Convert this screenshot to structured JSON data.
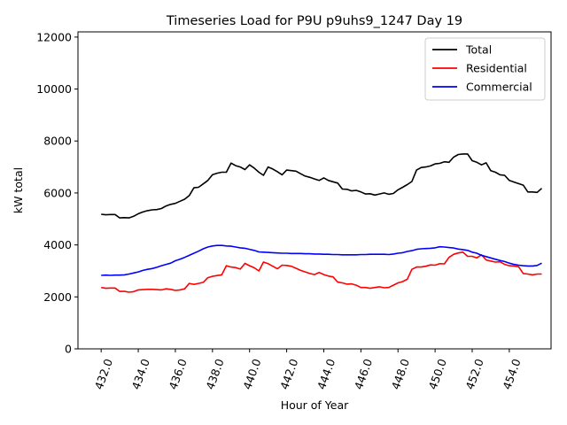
{
  "chart_data": {
    "type": "line",
    "title": "Timeseries Load for P9U p9uhs9_1247  Day 19",
    "xlabel": "Hour of Year",
    "ylabel": "kW total",
    "xlim": [
      430.75,
      456.25
    ],
    "ylim": [
      0,
      12200
    ],
    "xticks": [
      432,
      434,
      436,
      438,
      440,
      442,
      444,
      446,
      448,
      450,
      452,
      454
    ],
    "xtick_labels": [
      "432.0",
      "434.0",
      "436.0",
      "438.0",
      "440.0",
      "442.0",
      "444.0",
      "446.0",
      "448.0",
      "450.0",
      "452.0",
      "454.0"
    ],
    "yticks": [
      0,
      2000,
      4000,
      6000,
      8000,
      10000,
      12000
    ],
    "ytick_labels": [
      "0",
      "2000",
      "4000",
      "6000",
      "8000",
      "10000",
      "12000"
    ],
    "legend_position": "top-right",
    "x": [
      432.0,
      432.25,
      432.5,
      432.75,
      433.0,
      433.25,
      433.5,
      433.75,
      434.0,
      434.25,
      434.5,
      434.75,
      435.0,
      435.25,
      435.5,
      435.75,
      436.0,
      436.25,
      436.5,
      436.75,
      437.0,
      437.25,
      437.5,
      437.75,
      438.0,
      438.25,
      438.5,
      438.75,
      439.0,
      439.25,
      439.5,
      439.75,
      440.0,
      440.25,
      440.5,
      440.75,
      441.0,
      441.25,
      441.5,
      441.75,
      442.0,
      442.25,
      442.5,
      442.75,
      443.0,
      443.25,
      443.5,
      443.75,
      444.0,
      444.25,
      444.5,
      444.75,
      445.0,
      445.25,
      445.5,
      445.75,
      446.0,
      446.25,
      446.5,
      446.75,
      447.0,
      447.25,
      447.5,
      447.75,
      448.0,
      448.25,
      448.5,
      448.75,
      449.0,
      449.25,
      449.5,
      449.75,
      450.0,
      450.25,
      450.5,
      450.75,
      451.0,
      451.25,
      451.5,
      451.75,
      452.0,
      452.25,
      452.5,
      452.75,
      453.0,
      453.25,
      453.5,
      453.75,
      454.0,
      454.25,
      454.5,
      454.75,
      455.0,
      455.25,
      455.5,
      455.75
    ],
    "series": [
      {
        "name": "Total",
        "color": "#000000",
        "values": [
          5180,
          5160,
          5170,
          5170,
          5040,
          5050,
          5040,
          5100,
          5200,
          5270,
          5320,
          5350,
          5360,
          5400,
          5500,
          5560,
          5600,
          5680,
          5760,
          5900,
          6200,
          6220,
          6350,
          6480,
          6700,
          6760,
          6800,
          6800,
          7150,
          7050,
          7000,
          6900,
          7080,
          6960,
          6800,
          6680,
          7000,
          6920,
          6820,
          6700,
          6880,
          6860,
          6840,
          6740,
          6650,
          6600,
          6540,
          6480,
          6580,
          6480,
          6430,
          6380,
          6150,
          6140,
          6080,
          6100,
          6040,
          5960,
          5970,
          5920,
          5960,
          6000,
          5950,
          5980,
          6120,
          6220,
          6320,
          6440,
          6880,
          6980,
          7000,
          7040,
          7120,
          7140,
          7200,
          7180,
          7380,
          7480,
          7500,
          7500,
          7240,
          7180,
          7080,
          7160,
          6860,
          6800,
          6700,
          6680,
          6480,
          6420,
          6360,
          6300,
          6040,
          6040,
          6020,
          6180
        ]
      },
      {
        "name": "Residential",
        "color": "#ff0000",
        "values": [
          2360,
          2330,
          2340,
          2340,
          2210,
          2210,
          2180,
          2200,
          2270,
          2280,
          2290,
          2290,
          2280,
          2270,
          2310,
          2290,
          2250,
          2270,
          2310,
          2520,
          2480,
          2520,
          2560,
          2740,
          2790,
          2820,
          2850,
          3200,
          3150,
          3130,
          3070,
          3290,
          3200,
          3120,
          3000,
          3340,
          3280,
          3180,
          3080,
          3220,
          3210,
          3180,
          3100,
          3020,
          2960,
          2900,
          2860,
          2940,
          2860,
          2800,
          2770,
          2570,
          2540,
          2490,
          2500,
          2450,
          2360,
          2360,
          2330,
          2360,
          2390,
          2350,
          2360,
          2450,
          2540,
          2590,
          2680,
          3060,
          3150,
          3150,
          3180,
          3230,
          3220,
          3280,
          3270,
          3520,
          3640,
          3690,
          3720,
          3560,
          3560,
          3500,
          3620,
          3420,
          3380,
          3340,
          3350,
          3250,
          3200,
          3190,
          3160,
          2900,
          2880,
          2850,
          2880,
          2880
        ]
      },
      {
        "name": "Commercial",
        "color": "#0000ff",
        "values": [
          2830,
          2840,
          2830,
          2840,
          2840,
          2850,
          2880,
          2920,
          2960,
          3020,
          3060,
          3090,
          3140,
          3200,
          3250,
          3300,
          3390,
          3450,
          3520,
          3600,
          3680,
          3760,
          3850,
          3920,
          3960,
          3980,
          3980,
          3960,
          3950,
          3920,
          3890,
          3870,
          3830,
          3790,
          3730,
          3720,
          3710,
          3700,
          3690,
          3680,
          3680,
          3670,
          3670,
          3670,
          3660,
          3660,
          3650,
          3650,
          3640,
          3640,
          3630,
          3630,
          3620,
          3620,
          3620,
          3620,
          3630,
          3630,
          3640,
          3640,
          3640,
          3640,
          3630,
          3650,
          3680,
          3700,
          3750,
          3780,
          3830,
          3850,
          3860,
          3870,
          3890,
          3930,
          3920,
          3900,
          3880,
          3840,
          3820,
          3790,
          3720,
          3680,
          3600,
          3550,
          3500,
          3450,
          3400,
          3360,
          3300,
          3250,
          3220,
          3200,
          3190,
          3190,
          3210,
          3300
        ]
      }
    ]
  }
}
